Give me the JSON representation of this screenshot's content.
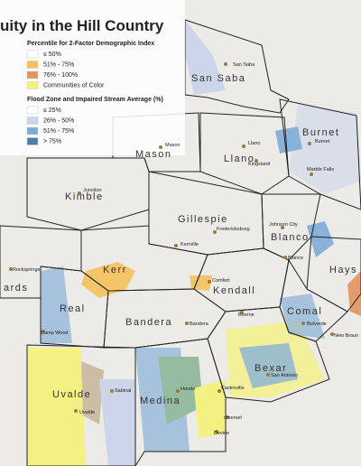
{
  "title": "uity in the Hill Country",
  "legend": [
    {
      "title": "Percentile for 2-Factor Demographic Index",
      "items": [
        {
          "label": "≤ 50%",
          "color": "#ffffff"
        },
        {
          "label": "51% - 75%",
          "color": "#f5c25c"
        },
        {
          "label": "76% - 100%",
          "color": "#e3935e"
        },
        {
          "label": "Communities of Color",
          "color": "#f4f27a"
        }
      ]
    },
    {
      "title": "Flood Zone and Impaired Stream Average (%)",
      "items": [
        {
          "label": "≤ 25%",
          "color": "#ffffff"
        },
        {
          "label": "26% - 50%",
          "color": "#c9d3ea"
        },
        {
          "label": "51% - 75%",
          "color": "#80abd6"
        },
        {
          "label": "> 75%",
          "color": "#4e7ea5"
        }
      ]
    }
  ],
  "counties": [
    "San Saba",
    "Mason",
    "Llano",
    "Burnet",
    "Kimble",
    "Gillespie",
    "Blanco",
    "Kerr",
    "Kendall",
    "Hays",
    "Real",
    "Bandera",
    "Comal",
    "Bexar",
    "Uvalde",
    "Medina",
    "ards"
  ],
  "cities": [
    "San Saba",
    "Mason",
    "Llano",
    "Burnet",
    "Kingsland",
    "Marble Falls",
    "Junction",
    "Johnson City",
    "Fredericksburg",
    "Blanco",
    "Kerrville",
    "Comfort",
    "Boerne",
    "Bulverde",
    "New Braun",
    "Rocksprings",
    "Camp Wood",
    "Bandera",
    "Hondo",
    "Castroville",
    "San Antonio",
    "Sabinal",
    "Uvalde",
    "omerset",
    "Devine"
  ]
}
